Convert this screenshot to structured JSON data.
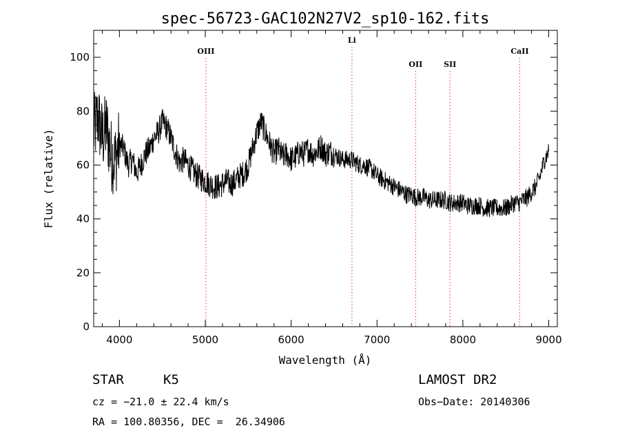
{
  "chart_data": {
    "type": "line",
    "title": "spec-56723-GAC102N27V2_sp10-162.fits",
    "xlabel": "Wavelength (Å)",
    "ylabel": "Flux (relative)",
    "xlim": [
      3700,
      9100
    ],
    "ylim": [
      0,
      110
    ],
    "xticks": [
      4000,
      5000,
      6000,
      7000,
      8000,
      9000
    ],
    "yticks": [
      0,
      20,
      40,
      60,
      80,
      100
    ],
    "xtick_labels": [
      "4000",
      "5000",
      "6000",
      "7000",
      "8000",
      "9000"
    ],
    "ytick_labels": [
      "0",
      "20",
      "40",
      "60",
      "80",
      "100"
    ],
    "grid": false,
    "spectral_lines": [
      {
        "name": "OIII",
        "wavelength": 5007
      },
      {
        "name": "Li",
        "wavelength": 6708
      },
      {
        "name": "OII",
        "wavelength": 7450
      },
      {
        "name": "SII",
        "wavelength": 7850
      },
      {
        "name": "CaII",
        "wavelength": 8662
      }
    ],
    "spectral_line_color": "#e05050",
    "series": [
      {
        "x": [
          3700,
          3750,
          3800,
          3850,
          3900,
          3950,
          4000,
          4050,
          4100,
          4150,
          4200,
          4250,
          4300,
          4350,
          4400,
          4450,
          4500,
          4550,
          4600,
          4650,
          4700,
          4750,
          4800,
          4850,
          4900,
          4950,
          5000,
          5050,
          5100,
          5150,
          5200,
          5250,
          5300,
          5350,
          5400,
          5450,
          5500,
          5550,
          5600,
          5650,
          5700,
          5750,
          5800,
          5850,
          5900,
          5950,
          6000,
          6050,
          6100,
          6150,
          6200,
          6250,
          6300,
          6350,
          6400,
          6450,
          6500,
          6550,
          6600,
          6650,
          6700,
          6750,
          6800,
          6850,
          6900,
          6950,
          7000,
          7050,
          7100,
          7150,
          7200,
          7250,
          7300,
          7350,
          7400,
          7450,
          7500,
          7550,
          7600,
          7650,
          7700,
          7750,
          7800,
          7850,
          7900,
          7950,
          8000,
          8050,
          8100,
          8150,
          8200,
          8250,
          8300,
          8350,
          8400,
          8450,
          8500,
          8550,
          8600,
          8650,
          8700,
          8750,
          8800,
          8850,
          8900,
          8950,
          9000
        ],
        "values": [
          72,
          78,
          70,
          74,
          64,
          62,
          68,
          66,
          60,
          62,
          57,
          60,
          64,
          66,
          70,
          72,
          76,
          74,
          70,
          65,
          61,
          62,
          60,
          58,
          56,
          55,
          54,
          53,
          52,
          52,
          53,
          54,
          53,
          54,
          56,
          57,
          60,
          66,
          72,
          76,
          72,
          68,
          64,
          66,
          63,
          64,
          62,
          63,
          65,
          64,
          66,
          64,
          65,
          67,
          64,
          65,
          64,
          63,
          62,
          62,
          62,
          61,
          60,
          60,
          59,
          58,
          56,
          55,
          54,
          53,
          52,
          51,
          50,
          49,
          49,
          48,
          48,
          48,
          47,
          47,
          47,
          47,
          47,
          46,
          46,
          46,
          46,
          45,
          45,
          45,
          45,
          44,
          44,
          44,
          44,
          44,
          44,
          45,
          46,
          46,
          47,
          48,
          50,
          52,
          56,
          62,
          65
        ]
      }
    ]
  },
  "footer": {
    "object_class": "STAR",
    "subclass": "K5",
    "survey": "LAMOST DR2",
    "cz": "cz = −21.0 ± 22.4 km/s",
    "obs_date": "Obs−Date: 20140306",
    "coords": "RA = 100.80356, DEC =  26.34906"
  }
}
